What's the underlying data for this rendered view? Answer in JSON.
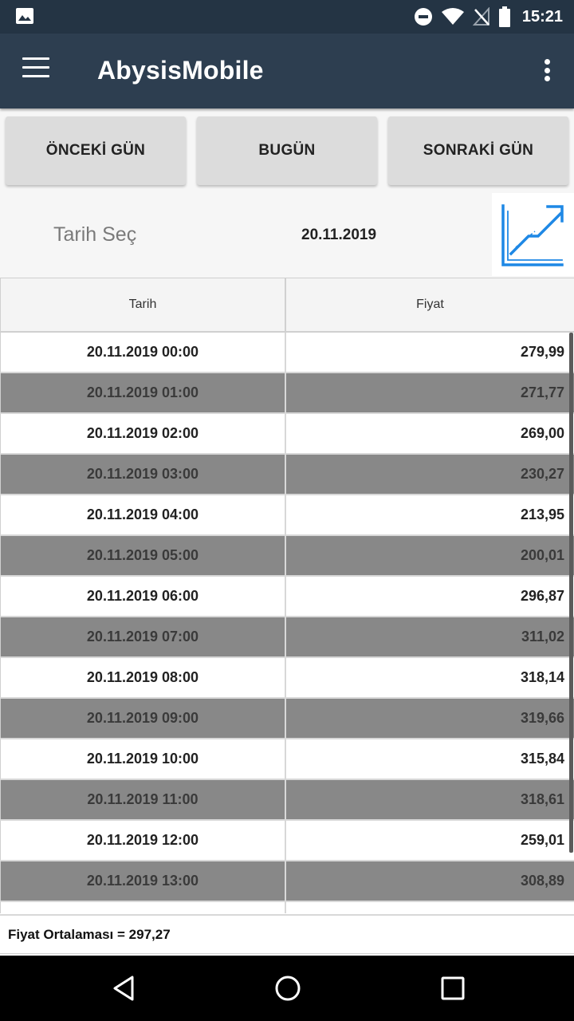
{
  "status_bar": {
    "time": "15:21",
    "icons": [
      "image-icon",
      "dnd-icon",
      "wifi-icon",
      "no-signal-icon",
      "battery-icon"
    ]
  },
  "app_bar": {
    "title": "AbysisMobile",
    "menu_icon": "hamburger-menu-icon",
    "overflow_icon": "more-vert-icon"
  },
  "day_buttons": {
    "previous": "ÖNCEKİ GÜN",
    "today": "BUGÜN",
    "next": "SONRAKİ GÜN"
  },
  "date_picker": {
    "label": "Tarih Seç",
    "value": "20.11.2019",
    "chart_icon": "line-chart-icon"
  },
  "table": {
    "headers": {
      "date": "Tarih",
      "price": "Fiyat"
    },
    "rows": [
      {
        "date": "20.11.2019 00:00",
        "price": "279,99"
      },
      {
        "date": "20.11.2019 01:00",
        "price": "271,77"
      },
      {
        "date": "20.11.2019 02:00",
        "price": "269,00"
      },
      {
        "date": "20.11.2019 03:00",
        "price": "230,27"
      },
      {
        "date": "20.11.2019 04:00",
        "price": "213,95"
      },
      {
        "date": "20.11.2019 05:00",
        "price": "200,01"
      },
      {
        "date": "20.11.2019 06:00",
        "price": "296,87"
      },
      {
        "date": "20.11.2019 07:00",
        "price": "311,02"
      },
      {
        "date": "20.11.2019 08:00",
        "price": "318,14"
      },
      {
        "date": "20.11.2019 09:00",
        "price": "319,66"
      },
      {
        "date": "20.11.2019 10:00",
        "price": "315,84"
      },
      {
        "date": "20.11.2019 11:00",
        "price": "318,61"
      },
      {
        "date": "20.11.2019 12:00",
        "price": "259,01"
      },
      {
        "date": "20.11.2019 13:00",
        "price": "308,89"
      }
    ]
  },
  "footer": {
    "average_text": "Fiyat Ortalaması = 297,27"
  },
  "nav_bar": {
    "icons": [
      "back-icon",
      "home-icon",
      "recent-apps-icon"
    ]
  },
  "colors": {
    "status_bar": "#243444",
    "app_bar": "#2d3e50",
    "row_alt": "#888888",
    "chart_icon": "#1e88e5"
  }
}
